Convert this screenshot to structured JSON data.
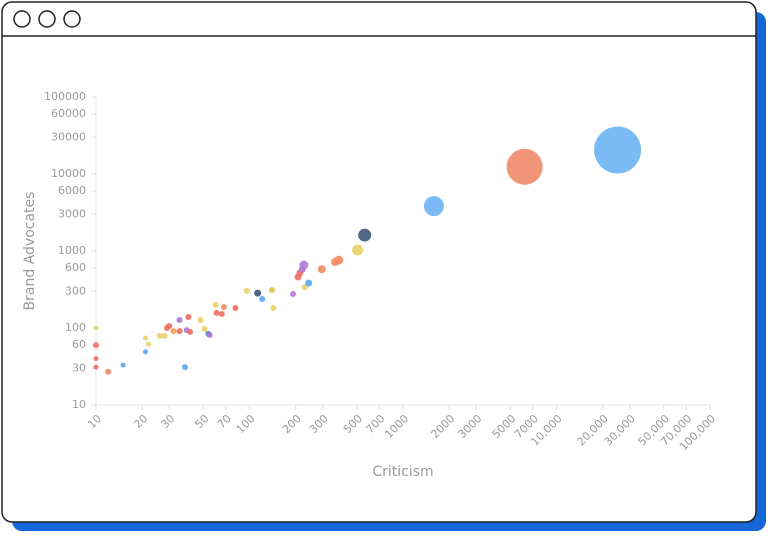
{
  "chart_data": {
    "type": "bubble",
    "xlabel": "Criticism",
    "ylabel": "Brand Advocates",
    "xscale": "log",
    "yscale": "log",
    "xlim": [
      10,
      100000
    ],
    "ylim": [
      10,
      100000
    ],
    "xticks": [
      10,
      20,
      30,
      50,
      70,
      100,
      200,
      300,
      500,
      700,
      1000,
      2000,
      3000,
      5000,
      7000,
      {
        "value": 10000,
        "label": "10,000"
      },
      {
        "value": 20000,
        "label": "20,000"
      },
      {
        "value": 30000,
        "label": "30,000"
      },
      {
        "value": 50000,
        "label": "50,000"
      },
      {
        "value": 70000,
        "label": "70,000"
      },
      {
        "value": 100000,
        "label": "100,000"
      }
    ],
    "yticks": [
      10,
      30,
      60,
      100,
      300,
      600,
      1000,
      3000,
      6000,
      10000,
      30000,
      60000,
      100000
    ],
    "x": [
      10,
      10,
      10,
      10,
      12,
      15,
      21,
      21,
      22,
      26,
      28,
      29,
      30,
      32,
      35,
      35,
      38,
      39,
      40,
      41,
      48,
      51,
      54,
      55,
      60,
      61,
      66,
      68,
      81,
      96,
      113,
      121,
      140,
      143,
      192,
      207,
      213,
      221,
      226,
      229,
      243,
      296,
      361,
      382,
      506,
      563,
      1590,
      6200,
      25000
    ],
    "y": [
      100,
      60,
      40,
      31,
      27,
      33,
      49,
      74,
      62,
      79,
      79,
      100,
      106,
      91,
      127,
      91,
      31,
      94,
      139,
      89,
      127,
      97,
      84,
      81,
      199,
      157,
      152,
      187,
      182,
      303,
      284,
      238,
      311,
      182,
      276,
      460,
      519,
      580,
      657,
      339,
      383,
      580,
      720,
      762,
      1030,
      1610,
      3830,
      12400,
      20500
    ],
    "sizes": [
      2.5,
      3,
      2.5,
      2.5,
      3,
      2.5,
      2.5,
      2.5,
      2.5,
      3,
      3,
      3,
      3,
      3,
      3,
      3,
      3,
      3,
      3,
      3,
      3,
      3,
      3,
      3,
      3,
      3,
      3,
      3,
      3,
      3,
      3.5,
      3,
      3,
      3,
      3,
      3.5,
      3.5,
      3.5,
      4.5,
      3,
      3.5,
      4,
      4,
      4.5,
      5.5,
      6.5,
      10,
      18,
      23.5
    ],
    "colors": [
      "#d9d96a",
      "#ee6e62",
      "#ee6e62",
      "#ee6e62",
      "#f08a62",
      "#5aa6f0",
      "#5aa6f0",
      "#e8d06a",
      "#e8d06a",
      "#e8d06a",
      "#e8d06a",
      "#ee6e62",
      "#ee6e62",
      "#f0a050",
      "#b07ad6",
      "#ee6e62",
      "#5aa6f0",
      "#b07ad6",
      "#ee6e62",
      "#ee6e62",
      "#e8d06a",
      "#e8d06a",
      "#5a80d0",
      "#b07ad6",
      "#e8d06a",
      "#ee6e62",
      "#ee6e62",
      "#f08a62",
      "#ee6e62",
      "#e8d06a",
      "#3d5878",
      "#5aa6f0",
      "#e8c050",
      "#e8d06a",
      "#b07ad6",
      "#ee6e62",
      "#ee6e62",
      "#b07ad6",
      "#b07ad6",
      "#e8d06a",
      "#5aa6f0",
      "#f08a62",
      "#f08a62",
      "#f08a62",
      "#e8d06a",
      "#3d5878",
      "#6cb4f5",
      "#f08a6a",
      "#6cb4f5"
    ]
  }
}
